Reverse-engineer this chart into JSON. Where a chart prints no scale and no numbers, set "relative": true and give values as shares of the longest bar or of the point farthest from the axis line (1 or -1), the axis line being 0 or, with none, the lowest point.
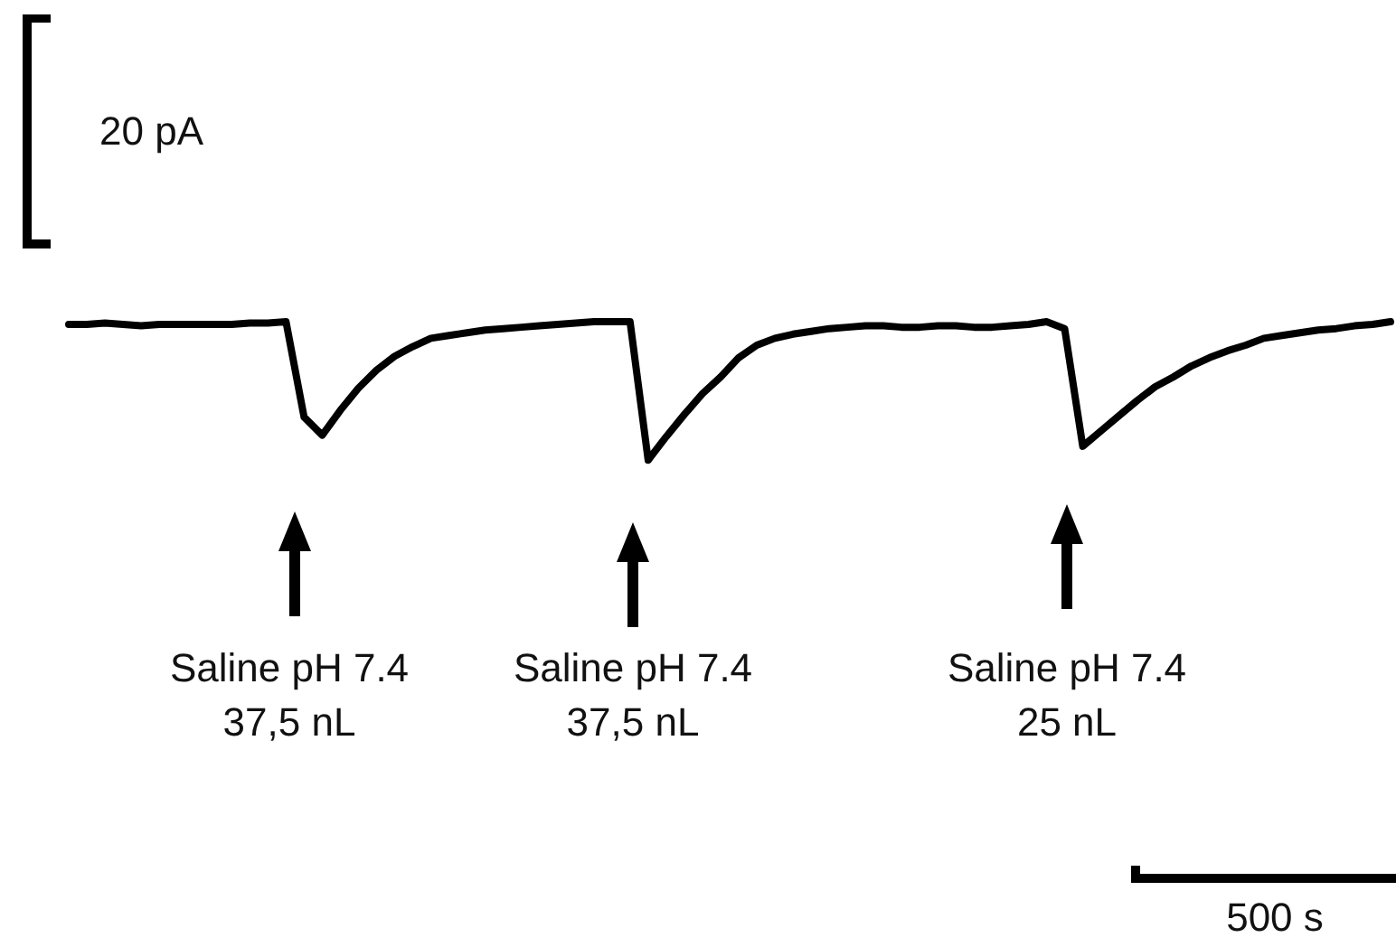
{
  "chart_data": {
    "type": "line",
    "relative": true,
    "marker": "none",
    "line_style": "solid",
    "categories": [
      null,
      null,
      null,
      null,
      null,
      null,
      null,
      null,
      null,
      null,
      null,
      null,
      null,
      null,
      null,
      null,
      null,
      null,
      null,
      null,
      null,
      null,
      null,
      null,
      null,
      null,
      null,
      null,
      null,
      null,
      null,
      null,
      null,
      null,
      null,
      null,
      null,
      null,
      null,
      null,
      null,
      null,
      null,
      null,
      null,
      null,
      null,
      null,
      null,
      null,
      null,
      null,
      null,
      null,
      null,
      null,
      null,
      null,
      null,
      null,
      null,
      null,
      null,
      null,
      null,
      null,
      null,
      null,
      null,
      null,
      null,
      null,
      null,
      null
    ],
    "series": [
      {
        "color": "#000000",
        "values": [
          0.98,
          0.98,
          0.99,
          0.98,
          0.97,
          0.98,
          0.98,
          0.98,
          0.98,
          0.98,
          0.99,
          0.99,
          1.0,
          0.31,
          0.18,
          0.36,
          0.52,
          0.65,
          0.75,
          0.82,
          0.88,
          0.9,
          0.92,
          0.94,
          0.95,
          0.96,
          0.97,
          0.98,
          0.99,
          1.0,
          1.0,
          1.0,
          0,
          0.17,
          0.33,
          0.48,
          0.6,
          0.74,
          0.83,
          0.88,
          0.91,
          0.93,
          0.95,
          0.96,
          0.97,
          0.97,
          0.96,
          0.96,
          0.97,
          0.97,
          0.96,
          0.96,
          0.97,
          0.98,
          1.0,
          0.95,
          0.1,
          0.21,
          0.32,
          0.43,
          0.53,
          0.6,
          0.68,
          0.74,
          0.79,
          0.83,
          0.88,
          0.9,
          0.92,
          0.94,
          0.95,
          0.97,
          0.98,
          1.0
        ]
      }
    ],
    "annotations": [
      "20 pA",
      "500 s",
      "Saline pH 7.4\n37,5 nL",
      "Saline pH 7.4\n37,5 nL",
      "Saline pH 7.4\n25 nL"
    ]
  }
}
